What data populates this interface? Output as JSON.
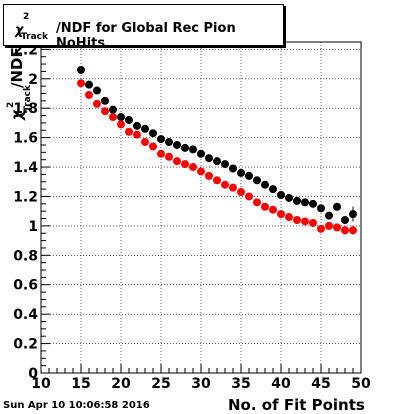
{
  "title": {
    "symbol": "χ",
    "superscript": "2",
    "subscript": "Track",
    "rest": "/NDF for Global Rec Pion NoHits"
  },
  "footer": {
    "date": "Sun Apr 10 10:06:58 2016"
  },
  "chart_data": {
    "type": "scatter",
    "xlabel": "No. of Fit Points",
    "ylabel": "χ²_Track/NDF",
    "xlim": [
      10,
      50
    ],
    "ylim": [
      0,
      2.25
    ],
    "x_ticks": [
      10,
      15,
      20,
      25,
      30,
      35,
      40,
      45,
      50
    ],
    "y_ticks": [
      0,
      0.2,
      0.4,
      0.6,
      0.8,
      1,
      1.2,
      1.4,
      1.6,
      1.8,
      2,
      2.2
    ],
    "grid": true,
    "series": [
      {
        "color": "#000000",
        "x": [
          15,
          16,
          17,
          18,
          19,
          20,
          21,
          22,
          23,
          24,
          25,
          26,
          27,
          28,
          29,
          30,
          31,
          32,
          33,
          34,
          35,
          36,
          37,
          38,
          39,
          40,
          41,
          42,
          43,
          44,
          45,
          46,
          47,
          48,
          49
        ],
        "y": [
          2.06,
          1.96,
          1.92,
          1.85,
          1.79,
          1.74,
          1.72,
          1.68,
          1.66,
          1.63,
          1.59,
          1.57,
          1.55,
          1.53,
          1.52,
          1.49,
          1.46,
          1.44,
          1.42,
          1.39,
          1.36,
          1.34,
          1.31,
          1.28,
          1.25,
          1.21,
          1.19,
          1.17,
          1.16,
          1.15,
          1.12,
          1.07,
          1.13,
          1.04,
          1.08
        ],
        "yerr": [
          0,
          0,
          0,
          0,
          0,
          0,
          0,
          0,
          0,
          0,
          0,
          0,
          0,
          0,
          0,
          0,
          0,
          0,
          0,
          0,
          0,
          0,
          0,
          0,
          0,
          0,
          0,
          0,
          0,
          0,
          0,
          0,
          0,
          0,
          0.05
        ]
      },
      {
        "color": "#ff0000",
        "x": [
          15,
          16,
          17,
          18,
          19,
          20,
          21,
          22,
          23,
          24,
          25,
          26,
          27,
          28,
          29,
          30,
          31,
          32,
          33,
          34,
          35,
          36,
          37,
          38,
          39,
          40,
          41,
          42,
          43,
          44,
          45,
          46,
          47,
          48,
          49
        ],
        "y": [
          1.97,
          1.89,
          1.83,
          1.78,
          1.74,
          1.69,
          1.64,
          1.62,
          1.57,
          1.54,
          1.49,
          1.47,
          1.44,
          1.42,
          1.4,
          1.37,
          1.34,
          1.31,
          1.28,
          1.26,
          1.23,
          1.2,
          1.16,
          1.13,
          1.11,
          1.08,
          1.06,
          1.04,
          1.03,
          1.02,
          0.98,
          1.0,
          0.99,
          0.97,
          0.97
        ],
        "yerr": [
          0,
          0,
          0,
          0,
          0,
          0,
          0,
          0,
          0,
          0,
          0,
          0,
          0,
          0,
          0,
          0,
          0,
          0,
          0,
          0,
          0,
          0,
          0,
          0,
          0,
          0,
          0,
          0,
          0,
          0,
          0,
          0,
          0,
          0.03,
          0.03
        ]
      }
    ]
  }
}
